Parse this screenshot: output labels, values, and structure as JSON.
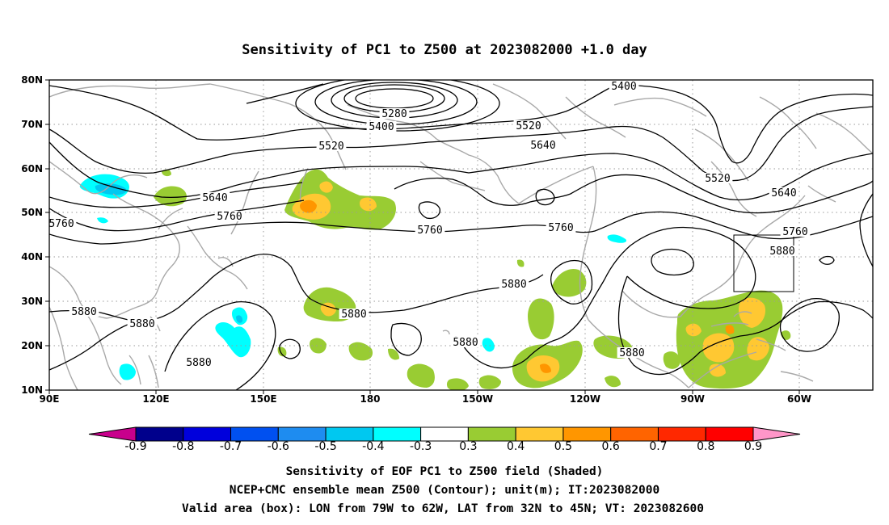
{
  "title": "Sensitivity of PC1 to Z500 at 2023082000 +1.0 day",
  "map": {
    "lon_ticks": [
      "90E",
      "120E",
      "150E",
      "180",
      "150W",
      "120W",
      "90W",
      "60W"
    ],
    "lat_ticks": [
      "80N",
      "70N",
      "60N",
      "50N",
      "40N",
      "30N",
      "20N",
      "10N"
    ],
    "contour_labels": [
      "5280",
      "5400",
      "5400",
      "5520",
      "5520",
      "5520",
      "5640",
      "5640",
      "5640",
      "5760",
      "5760",
      "5760",
      "5760",
      "5760",
      "5880",
      "5880",
      "5880",
      "5880",
      "5880",
      "5880",
      "5880",
      "5880"
    ],
    "valid_box": {
      "lon_from": "79W",
      "lon_to": "62W",
      "lat_from": "32N",
      "lat_to": "45N"
    }
  },
  "colorbar": {
    "labels": [
      "-0.9",
      "-0.8",
      "-0.7",
      "-0.6",
      "-0.5",
      "-0.4",
      "-0.3",
      "0.3",
      "0.4",
      "0.5",
      "0.6",
      "0.7",
      "0.8",
      "0.9"
    ],
    "colors": [
      "#c8008c",
      "#00008c",
      "#0000dc",
      "#0050f0",
      "#1e8cf0",
      "#00c8f0",
      "#00ffff",
      "#ffffff",
      "#99cc33",
      "#ffc832",
      "#ff9600",
      "#ff6400",
      "#ff2800",
      "#ff0000",
      "#ff96c8"
    ]
  },
  "footer": {
    "line1": "Sensitivity of EOF PC1 to Z500 field (Shaded)",
    "line2": "NCEP+CMC ensemble mean Z500 (Contour); unit(m); IT:2023082000",
    "line3": "Valid area (box): LON from 79W to 62W, LAT from 32N to 45N; VT: 2023082600"
  }
}
